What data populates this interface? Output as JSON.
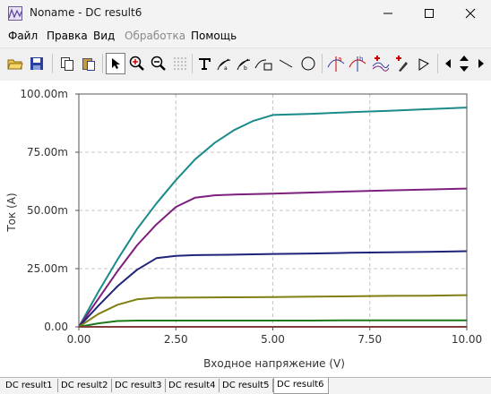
{
  "window": {
    "title": "Noname - DC result6"
  },
  "menu": [
    {
      "label": "Файл",
      "disabled": false
    },
    {
      "label": "Правка",
      "disabled": false
    },
    {
      "label": "Вид",
      "disabled": false
    },
    {
      "label": "Обработка",
      "disabled": true
    },
    {
      "label": "Помощь",
      "disabled": false
    }
  ],
  "tabs": [
    "DC result1",
    "DC result2",
    "DC result3",
    "DC result4",
    "DC result5",
    "DC result6"
  ],
  "active_tab": "DC result6",
  "colors": {
    "plot_bg": "#ffffff",
    "grid": "#c4c4c4"
  },
  "chart_data": {
    "type": "line",
    "xlabel": "Входное напряжение (V)",
    "ylabel": "Ток (A)",
    "xlim": [
      0,
      10
    ],
    "ylim": [
      0,
      0.1
    ],
    "x_ticks": [
      "0.00",
      "2.50",
      "5.00",
      "7.50",
      "10.00"
    ],
    "y_ticks": [
      "0.00",
      "25.00m",
      "50.00m",
      "75.00m",
      "100.00m"
    ],
    "grid": true,
    "series": [
      {
        "color": "#1a8a8a",
        "points": [
          [
            0,
            0
          ],
          [
            0.5,
            0.015
          ],
          [
            1,
            0.029
          ],
          [
            1.5,
            0.042
          ],
          [
            2,
            0.053
          ],
          [
            2.5,
            0.063
          ],
          [
            3,
            0.072
          ],
          [
            3.5,
            0.079
          ],
          [
            4,
            0.0845
          ],
          [
            4.5,
            0.0885
          ],
          [
            5,
            0.091
          ],
          [
            6,
            0.0915
          ],
          [
            7,
            0.0922
          ],
          [
            8,
            0.0928
          ],
          [
            9,
            0.0935
          ],
          [
            10,
            0.0942
          ]
        ]
      },
      {
        "color": "#7d1f7d",
        "points": [
          [
            0,
            0
          ],
          [
            0.5,
            0.012
          ],
          [
            1,
            0.024
          ],
          [
            1.5,
            0.035
          ],
          [
            2,
            0.044
          ],
          [
            2.5,
            0.0515
          ],
          [
            3,
            0.0555
          ],
          [
            3.5,
            0.0565
          ],
          [
            4,
            0.0568
          ],
          [
            5,
            0.0572
          ],
          [
            6,
            0.0577
          ],
          [
            7,
            0.0582
          ],
          [
            8,
            0.0586
          ],
          [
            9,
            0.059
          ],
          [
            10,
            0.0594
          ]
        ]
      },
      {
        "color": "#1f237a",
        "points": [
          [
            0,
            0
          ],
          [
            0.5,
            0.009
          ],
          [
            1,
            0.0175
          ],
          [
            1.5,
            0.0245
          ],
          [
            2,
            0.0295
          ],
          [
            2.5,
            0.0305
          ],
          [
            3,
            0.0308
          ],
          [
            4,
            0.031
          ],
          [
            5,
            0.0313
          ],
          [
            6,
            0.0315
          ],
          [
            7,
            0.0318
          ],
          [
            8,
            0.032
          ],
          [
            9,
            0.0322
          ],
          [
            10,
            0.0325
          ]
        ]
      },
      {
        "color": "#7f7f14",
        "points": [
          [
            0,
            0
          ],
          [
            0.5,
            0.0055
          ],
          [
            1,
            0.0095
          ],
          [
            1.5,
            0.0118
          ],
          [
            2,
            0.0125
          ],
          [
            3,
            0.0126
          ],
          [
            4,
            0.0127
          ],
          [
            5,
            0.0128
          ],
          [
            6,
            0.013
          ],
          [
            7,
            0.0131
          ],
          [
            8,
            0.0133
          ],
          [
            9,
            0.0134
          ],
          [
            10,
            0.0136
          ]
        ]
      },
      {
        "color": "#1a7a1a",
        "points": [
          [
            0,
            0
          ],
          [
            0.5,
            0.0015
          ],
          [
            1,
            0.0025
          ],
          [
            1.5,
            0.0027
          ],
          [
            2,
            0.0027
          ],
          [
            3,
            0.0027
          ],
          [
            4,
            0.0027
          ],
          [
            5,
            0.0027
          ],
          [
            6,
            0.0027
          ],
          [
            7,
            0.0028
          ],
          [
            8,
            0.0028
          ],
          [
            9,
            0.0028
          ],
          [
            10,
            0.0028
          ]
        ]
      },
      {
        "color": "#b22222",
        "points": [
          [
            0,
            0
          ],
          [
            10,
            0
          ]
        ]
      }
    ]
  }
}
